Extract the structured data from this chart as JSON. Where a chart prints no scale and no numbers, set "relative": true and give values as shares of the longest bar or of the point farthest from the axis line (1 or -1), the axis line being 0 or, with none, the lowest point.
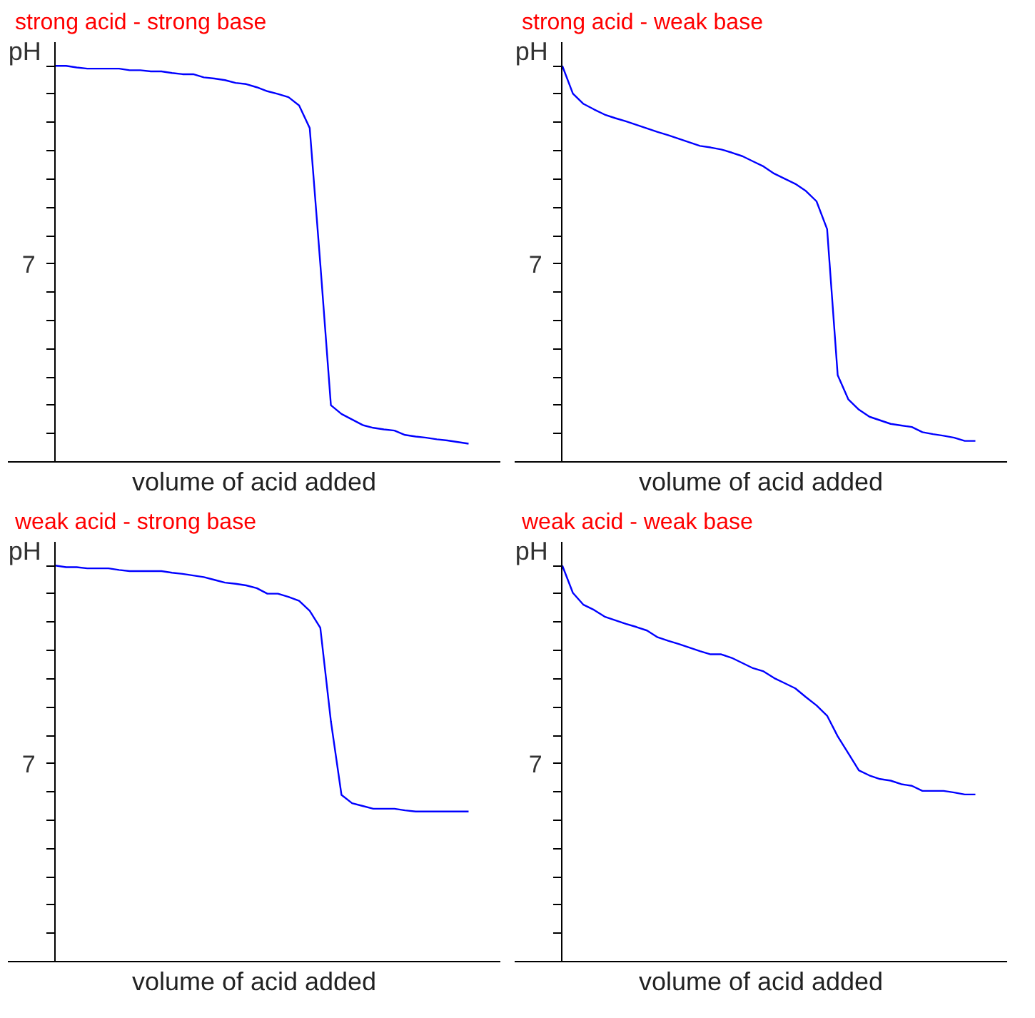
{
  "chart_data": [
    {
      "type": "line",
      "title": "strong acid - strong base",
      "xlabel": "volume of acid added",
      "ylabel": "pH",
      "annotations": [
        "7"
      ],
      "relative": true,
      "categories": [
        null,
        null,
        null,
        null,
        null,
        null,
        null,
        null,
        null,
        null,
        null,
        null,
        null,
        null,
        null,
        null,
        null,
        null,
        null,
        null,
        null,
        null,
        null,
        null,
        null,
        null,
        null,
        null,
        null,
        null,
        null,
        null,
        null,
        null,
        null,
        null,
        null,
        null,
        null,
        null
      ],
      "series": [
        {
          "color": "#0000ff",
          "values": [
            1,
            1,
            0.996,
            0.993,
            0.993,
            0.993,
            0.993,
            0.989,
            0.989,
            0.986,
            0.986,
            0.982,
            0.979,
            0.979,
            0.971,
            0.968,
            0.964,
            0.957,
            0.954,
            0.946,
            0.936,
            0.929,
            0.921,
            0.9,
            0.843,
            0.5,
            0.143,
            0.121,
            0.107,
            0.093,
            0.086,
            0.082,
            0.079,
            0.068,
            0.064,
            0.061,
            0.057,
            0.054,
            0.05,
            0.046
          ]
        }
      ],
      "tick_labels": false,
      "grid": false
    },
    {
      "type": "line",
      "title": "strong acid - weak base",
      "xlabel": "volume of acid added",
      "ylabel": "pH",
      "annotations": [
        "7"
      ],
      "relative": true,
      "categories": [
        null,
        null,
        null,
        null,
        null,
        null,
        null,
        null,
        null,
        null,
        null,
        null,
        null,
        null,
        null,
        null,
        null,
        null,
        null,
        null,
        null,
        null,
        null,
        null,
        null,
        null,
        null,
        null,
        null,
        null,
        null,
        null,
        null,
        null,
        null,
        null,
        null,
        null,
        null,
        null
      ],
      "series": [
        {
          "color": "#0000ff",
          "values": [
            1,
            0.93,
            0.904,
            0.89,
            0.877,
            0.868,
            0.86,
            0.851,
            0.842,
            0.833,
            0.825,
            0.816,
            0.807,
            0.798,
            0.794,
            0.789,
            0.781,
            0.772,
            0.759,
            0.746,
            0.728,
            0.715,
            0.702,
            0.684,
            0.658,
            0.588,
            0.219,
            0.158,
            0.132,
            0.114,
            0.105,
            0.096,
            0.092,
            0.088,
            0.075,
            0.07,
            0.066,
            0.061,
            0.053,
            0.053
          ]
        }
      ],
      "tick_labels": false,
      "grid": false
    },
    {
      "type": "line",
      "title": "weak acid - strong base",
      "xlabel": "volume of acid added",
      "ylabel": "pH",
      "annotations": [
        "7"
      ],
      "relative": true,
      "categories": [
        null,
        null,
        null,
        null,
        null,
        null,
        null,
        null,
        null,
        null,
        null,
        null,
        null,
        null,
        null,
        null,
        null,
        null,
        null,
        null,
        null,
        null,
        null,
        null,
        null,
        null,
        null,
        null,
        null,
        null,
        null,
        null,
        null,
        null,
        null,
        null,
        null,
        null,
        null,
        null
      ],
      "series": [
        {
          "color": "#0000ff",
          "values": [
            1,
            0.996,
            0.996,
            0.993,
            0.993,
            0.993,
            0.989,
            0.986,
            0.986,
            0.986,
            0.986,
            0.982,
            0.979,
            0.975,
            0.971,
            0.964,
            0.957,
            0.954,
            0.95,
            0.943,
            0.929,
            0.929,
            0.921,
            0.911,
            0.886,
            0.843,
            0.607,
            0.421,
            0.4,
            0.393,
            0.386,
            0.386,
            0.386,
            0.382,
            0.379,
            0.379,
            0.379,
            0.379,
            0.379,
            0.379
          ]
        }
      ],
      "tick_labels": false,
      "grid": false
    },
    {
      "type": "line",
      "title": "weak acid - weak base",
      "xlabel": "volume of acid added",
      "ylabel": "pH",
      "annotations": [
        "7"
      ],
      "relative": true,
      "categories": [
        null,
        null,
        null,
        null,
        null,
        null,
        null,
        null,
        null,
        null,
        null,
        null,
        null,
        null,
        null,
        null,
        null,
        null,
        null,
        null,
        null,
        null,
        null,
        null,
        null,
        null,
        null,
        null,
        null,
        null,
        null,
        null,
        null,
        null,
        null,
        null,
        null,
        null,
        null,
        null
      ],
      "series": [
        {
          "color": "#0000ff",
          "values": [
            1,
            0.931,
            0.901,
            0.888,
            0.871,
            0.862,
            0.853,
            0.845,
            0.836,
            0.819,
            0.81,
            0.802,
            0.793,
            0.784,
            0.776,
            0.776,
            0.767,
            0.754,
            0.741,
            0.733,
            0.716,
            0.703,
            0.69,
            0.668,
            0.647,
            0.621,
            0.569,
            0.526,
            0.483,
            0.47,
            0.461,
            0.457,
            0.448,
            0.444,
            0.431,
            0.431,
            0.431,
            0.427,
            0.422,
            0.422
          ]
        }
      ],
      "tick_labels": false,
      "grid": false
    }
  ]
}
